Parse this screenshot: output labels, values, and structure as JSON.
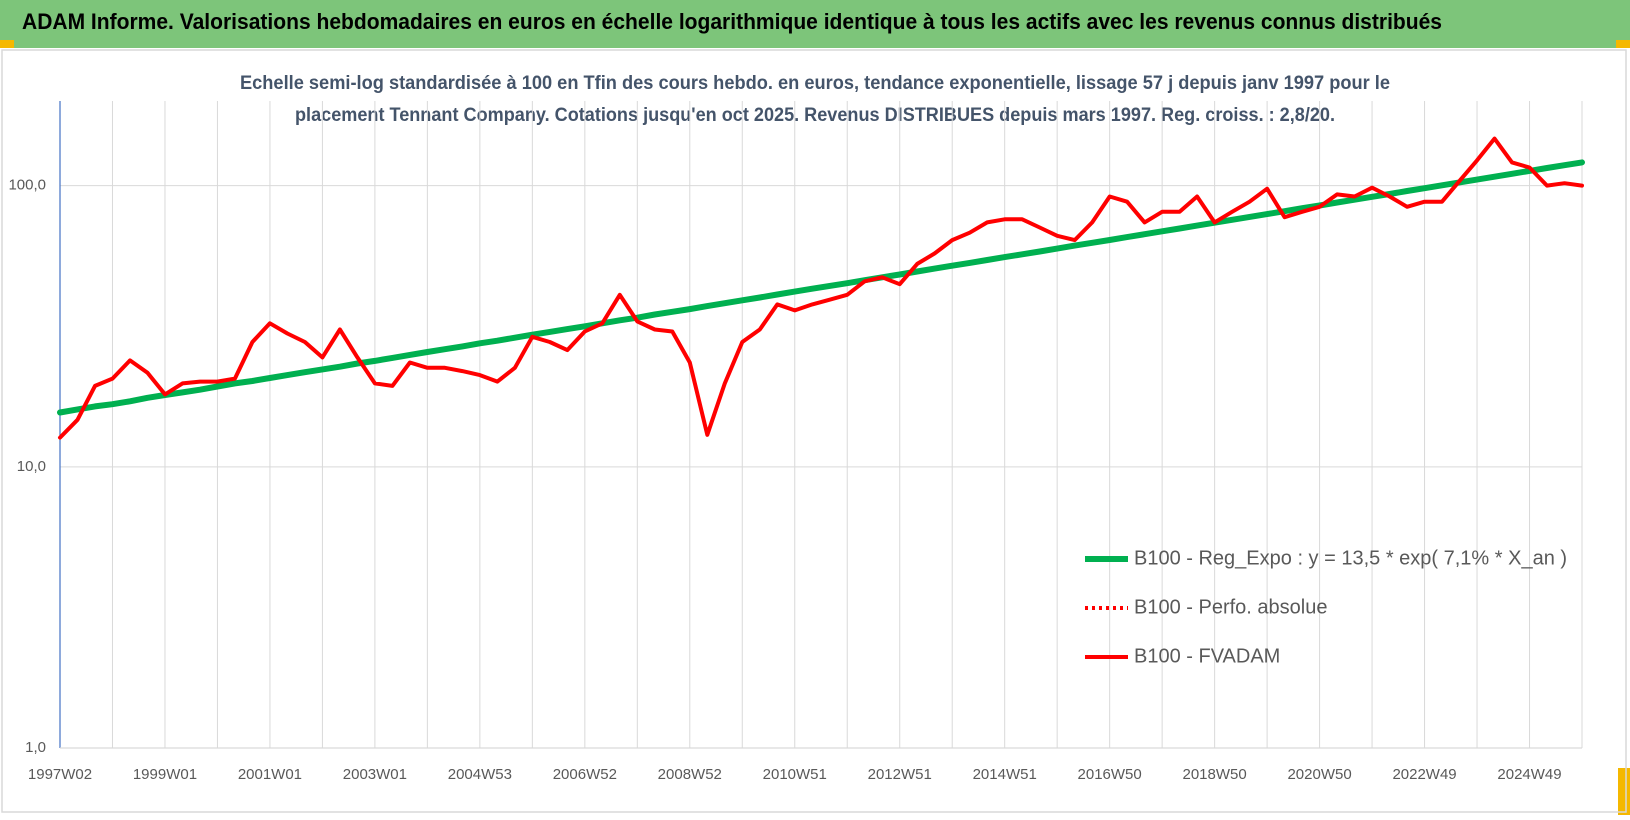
{
  "header": {
    "title": "ADAM Informe. Valorisations hebdomadaires en euros en échelle logarithmique identique à tous les actifs avec les revenus connus distribués"
  },
  "chart_data": {
    "type": "line",
    "subtitle": [
      "Echelle semi-log standardisée à 100 en Tfin des cours hebdo. en euros, tendance exponentielle, lissage 57 j depuis janv 1997 pour le",
      "placement Tennant Company. Cotations jusqu'en oct 2025. Revenus DISTRIBUES depuis mars 1997. Reg. croiss. : 2,8/20."
    ],
    "log_scale": true,
    "grid": true,
    "ylim": [
      1,
      200
    ],
    "yticks": [
      {
        "value": 1,
        "label": "1,0"
      },
      {
        "value": 10,
        "label": "10,0"
      },
      {
        "value": 100,
        "label": "100,0"
      }
    ],
    "categories": [
      "1997W02",
      null,
      null,
      null,
      null,
      null,
      "1999W01",
      null,
      null,
      null,
      null,
      null,
      "2001W01",
      null,
      null,
      null,
      null,
      null,
      "2003W01",
      null,
      null,
      null,
      null,
      null,
      "2004W53",
      null,
      null,
      null,
      null,
      null,
      "2006W52",
      null,
      null,
      null,
      null,
      null,
      "2008W52",
      null,
      null,
      null,
      null,
      null,
      "2010W51",
      null,
      null,
      null,
      null,
      null,
      "2012W51",
      null,
      null,
      null,
      null,
      null,
      "2014W51",
      null,
      null,
      null,
      null,
      null,
      "2016W50",
      null,
      null,
      null,
      null,
      null,
      "2018W50",
      null,
      null,
      null,
      null,
      null,
      "2020W50",
      null,
      null,
      null,
      null,
      null,
      "2022W49",
      null,
      null,
      null,
      null,
      null,
      "2024W49",
      null,
      null,
      null
    ],
    "series": [
      {
        "name": "B100 - Reg_Expo : y = 13,5 * exp( 7,1% *  X_an )",
        "color": "#00b050",
        "width": 6,
        "values": [
          15.6,
          16.0,
          16.4,
          16.7,
          17.1,
          17.6,
          18.0,
          18.4,
          18.8,
          19.3,
          19.8,
          20.2,
          20.7,
          21.2,
          21.7,
          22.2,
          22.7,
          23.3,
          23.8,
          24.4,
          25.0,
          25.6,
          26.2,
          26.8,
          27.5,
          28.1,
          28.8,
          29.5,
          30.2,
          30.9,
          31.6,
          32.4,
          33.2,
          33.9,
          34.8,
          35.6,
          36.4,
          37.3,
          38.2,
          39.1,
          40.0,
          41.0,
          42.0,
          43.0,
          44.0,
          45.0,
          46.1,
          47.2,
          48.3,
          49.5,
          50.7,
          51.9,
          53.1,
          54.4,
          55.7,
          57.0,
          58.3,
          59.7,
          61.2,
          62.6,
          64.1,
          65.6,
          67.2,
          68.8,
          70.4,
          72.1,
          73.8,
          75.6,
          77.4,
          79.2,
          81.1,
          83.1,
          85.0,
          87.1,
          89.1,
          91.3,
          93.4,
          95.7,
          97.9,
          100.3,
          102.7,
          105.1,
          107.6,
          110.2,
          112.8,
          115.5,
          118.2,
          121.0
        ]
      },
      {
        "name": "B100 - Perfo. absolue",
        "color": "#ff0000",
        "dash": "dotted",
        "width": 4
      },
      {
        "name": "B100 - FVADAM",
        "color": "#ff0000",
        "width": 4,
        "values": [
          12.7,
          14.7,
          19.4,
          20.6,
          23.9,
          21.6,
          18.1,
          19.8,
          20.1,
          20.1,
          20.6,
          27.8,
          32.4,
          29.8,
          27.8,
          24.5,
          30.8,
          24.5,
          19.8,
          19.4,
          23.5,
          22.5,
          22.5,
          21.9,
          21.2,
          20.1,
          22.5,
          29.0,
          27.8,
          26.0,
          30.3,
          32.4,
          40.9,
          32.9,
          30.8,
          30.3,
          23.5,
          13.0,
          19.8,
          27.8,
          30.8,
          37.8,
          36.0,
          37.8,
          39.3,
          40.9,
          45.7,
          47.2,
          44.6,
          52.7,
          57.4,
          64.0,
          68.0,
          74.0,
          75.9,
          75.9,
          71.0,
          66.3,
          64.0,
          74.0,
          91.5,
          87.7,
          74.0,
          80.7,
          80.7,
          91.5,
          74.0,
          80.7,
          87.7,
          97.5,
          77.2,
          80.7,
          84.1,
          93.1,
          91.5,
          98.3,
          91.5,
          84.1,
          87.7,
          87.7,
          104,
          123,
          147,
          121,
          116,
          100,
          102,
          100
        ]
      }
    ]
  }
}
